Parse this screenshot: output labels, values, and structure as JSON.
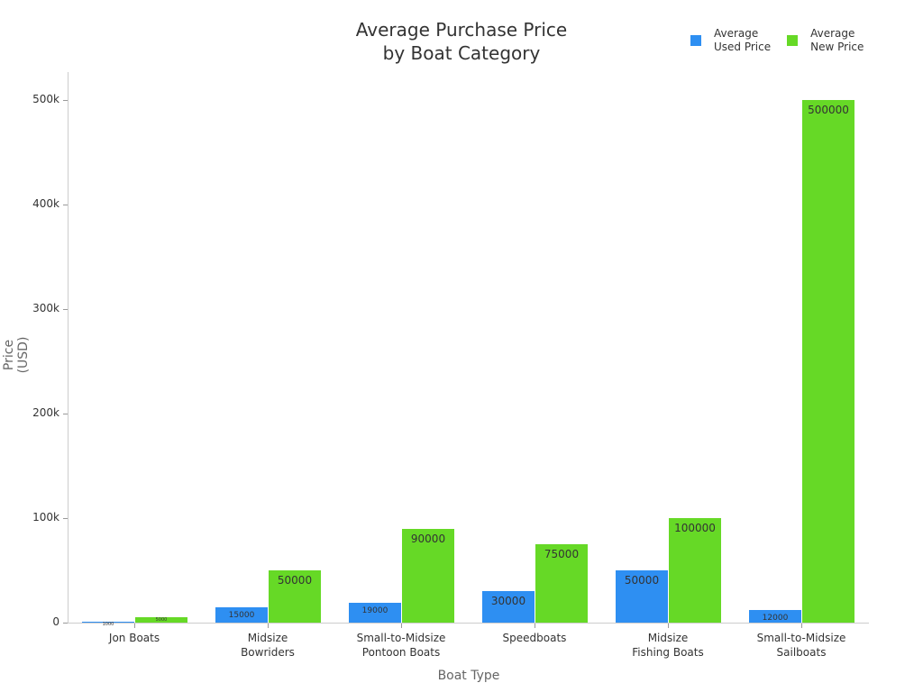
{
  "chart_data": {
    "type": "bar",
    "title": "Average Purchase Price by Boat Category",
    "title_lines": [
      "Average Purchase Price",
      "by Boat Category"
    ],
    "xlabel": "Boat Type",
    "ylabel": "Price (USD)",
    "ylim": [
      0,
      525000
    ],
    "yticks": [
      "0",
      "100k",
      "200k",
      "300k",
      "400k",
      "500k"
    ],
    "categories": [
      "Jon Boats",
      "Midsize Bowriders",
      "Small-to-Midsize Pontoon Boats",
      "Speedboats",
      "Midsize Fishing Boats",
      "Small-to-Midsize Sailboats"
    ],
    "category_lines": [
      [
        "Jon Boats"
      ],
      [
        "Midsize",
        "Bowriders"
      ],
      [
        "Small-to-Midsize",
        "Pontoon Boats"
      ],
      [
        "Speedboats"
      ],
      [
        "Midsize",
        "Fishing Boats"
      ],
      [
        "Small-to-Midsize",
        "Sailboats"
      ]
    ],
    "series": [
      {
        "name": "Average Used Price",
        "color": "#2e8ff2",
        "values": [
          1000,
          15000,
          19000,
          30000,
          50000,
          12000
        ]
      },
      {
        "name": "Average New Price",
        "color": "#66d926",
        "values": [
          5000,
          50000,
          90000,
          75000,
          100000,
          500000
        ]
      }
    ],
    "legend_position": "top-right",
    "grid": false
  },
  "legend": [
    {
      "line1": "Average",
      "line2": "Used Price"
    },
    {
      "line1": "Average",
      "line2": "New Price"
    }
  ]
}
